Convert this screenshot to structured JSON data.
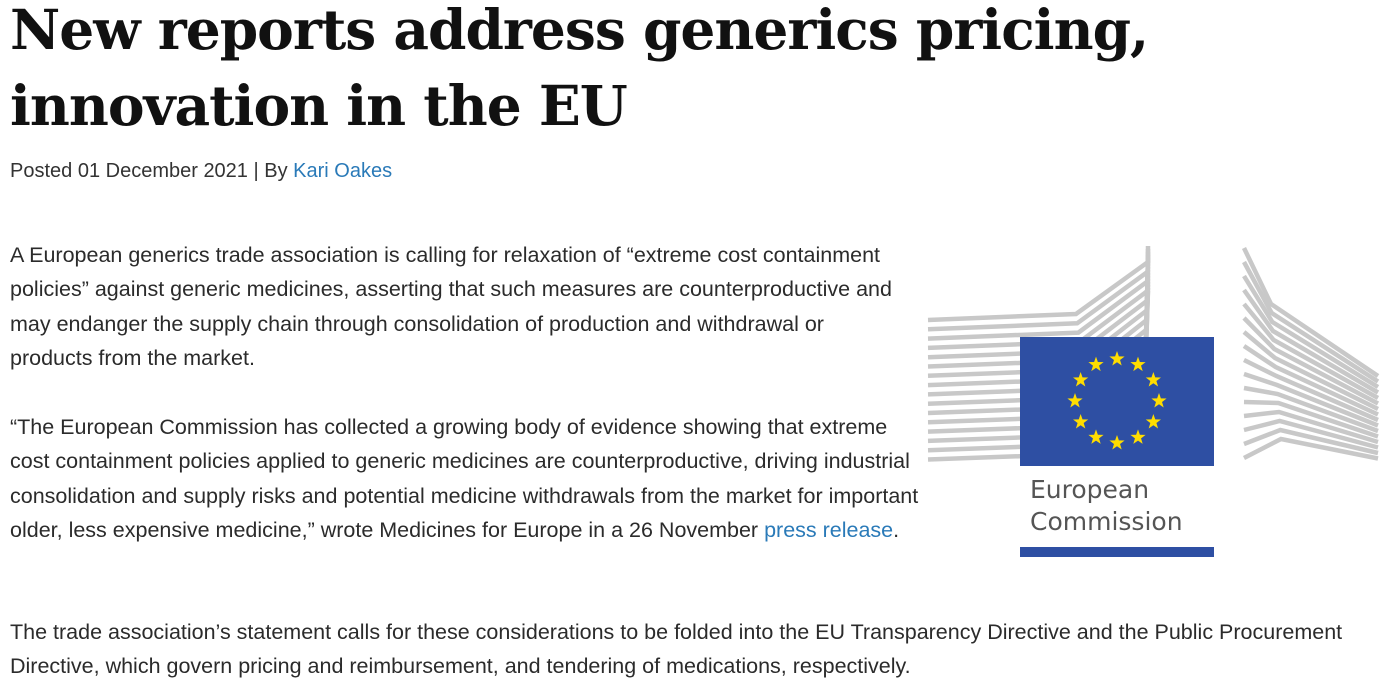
{
  "article": {
    "title": "New reports address generics pricing, innovation in the EU",
    "byline_prefix": "Posted 01 December 2021 | By ",
    "author": "Kari Oakes"
  },
  "paragraphs": {
    "p1": "A European generics trade association is calling for relaxation of “extreme cost containment policies” against generic medicines, asserting that such measures are counterproductive and may endanger the supply chain through consolidation of production and withdrawal or products from the market.",
    "p2_before_link": "“The European Commission has collected a growing body of evidence showing that extreme cost containment policies applied to generic medicines are counterproductive, driving industrial consolidation and supply risks and potential medicine withdrawals from the market for important older, less expensive medicine,” wrote Medicines for Europe in a 26 November ",
    "p2_link": "press release",
    "p2_after_link": ".",
    "p3": "The trade association’s statement calls for these considerations to be folded into the EU Transparency Directive and the Public Procurement Directive, which govern pricing and reimbursement, and tendering of medications, respectively."
  },
  "logo": {
    "name": "European Commission logo",
    "text_line1": "European",
    "text_line2": "Commission",
    "colors": {
      "flag_blue": "#2e4fa3",
      "star_yellow": "#ffdd00",
      "stripes_gray": "#c8c8c8",
      "text_gray": "#555555"
    }
  },
  "colors": {
    "link": "#2a7ab8",
    "text": "#2b2b2b",
    "headline": "#111111"
  }
}
